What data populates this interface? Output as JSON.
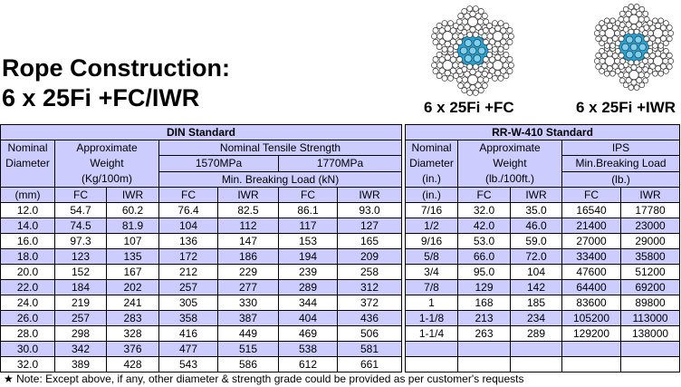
{
  "title": {
    "line1": "Rope Construction:",
    "line2": "6 x 25Fi +FC/IWR"
  },
  "images": [
    {
      "caption": "6 x 25Fi +FC"
    },
    {
      "caption": "6 x 25Fi +IWR"
    }
  ],
  "din_table": {
    "title": "DIN Standard",
    "diameter": [
      "Nominal",
      "Diameter"
    ],
    "weight": [
      "Approximate",
      "Weight",
      "(Kg/100m)"
    ],
    "strength": "Nominal Tensile Strength",
    "grades": [
      "1570MPa",
      "1770MPa"
    ],
    "load": "Min. Breaking Load (kN)",
    "cols": [
      "(mm)",
      "FC",
      "IWR",
      "FC",
      "IWR",
      "FC",
      "IWR"
    ],
    "rows": [
      [
        "12.0",
        "54.7",
        "60.2",
        "76.4",
        "82.5",
        "86.1",
        "93.0"
      ],
      [
        "14.0",
        "74.5",
        "81.9",
        "104",
        "112",
        "117",
        "127"
      ],
      [
        "16.0",
        "97.3",
        "107",
        "136",
        "147",
        "153",
        "165"
      ],
      [
        "18.0",
        "123",
        "135",
        "172",
        "186",
        "194",
        "209"
      ],
      [
        "20.0",
        "152",
        "167",
        "212",
        "229",
        "239",
        "258"
      ],
      [
        "22.0",
        "184",
        "202",
        "257",
        "277",
        "289",
        "312"
      ],
      [
        "24.0",
        "219",
        "241",
        "305",
        "330",
        "344",
        "372"
      ],
      [
        "26.0",
        "257",
        "283",
        "358",
        "387",
        "404",
        "436"
      ],
      [
        "28.0",
        "298",
        "328",
        "416",
        "449",
        "469",
        "506"
      ],
      [
        "30.0",
        "342",
        "376",
        "477",
        "515",
        "538",
        "581"
      ],
      [
        "32.0",
        "389",
        "428",
        "543",
        "586",
        "612",
        "661"
      ]
    ]
  },
  "rr_table": {
    "title": "RR-W-410 Standard",
    "diameter": [
      "Nominal",
      "Diameter",
      "(in.)"
    ],
    "weight": [
      "Approximate",
      "Weight",
      "(lb./100ft.)"
    ],
    "grade": "IPS",
    "load": [
      "Min.Breaking Load",
      "(lb.)"
    ],
    "cols": [
      "(in.)",
      "FC",
      "IWR",
      "FC",
      "IWR"
    ],
    "rows": [
      [
        "7/16",
        "32.0",
        "35.0",
        "16540",
        "17780"
      ],
      [
        "1/2",
        "42.0",
        "46.0",
        "21400",
        "23000"
      ],
      [
        "9/16",
        "53.0",
        "59.0",
        "27000",
        "29000"
      ],
      [
        "5/8",
        "66.0",
        "72.0",
        "33400",
        "35800"
      ],
      [
        "3/4",
        "95.0",
        "104",
        "47600",
        "51200"
      ],
      [
        "7/8",
        "129",
        "142",
        "64400",
        "69200"
      ],
      [
        "1",
        "168",
        "185",
        "83600",
        "89800"
      ],
      [
        "1-1/8",
        "213",
        "234",
        "105200",
        "113000"
      ],
      [
        "1-1/4",
        "263",
        "289",
        "129200",
        "138000"
      ]
    ]
  },
  "note": "★ Note: Except above, if any, other diameter & strength grade could be provided as per customer's requests"
}
